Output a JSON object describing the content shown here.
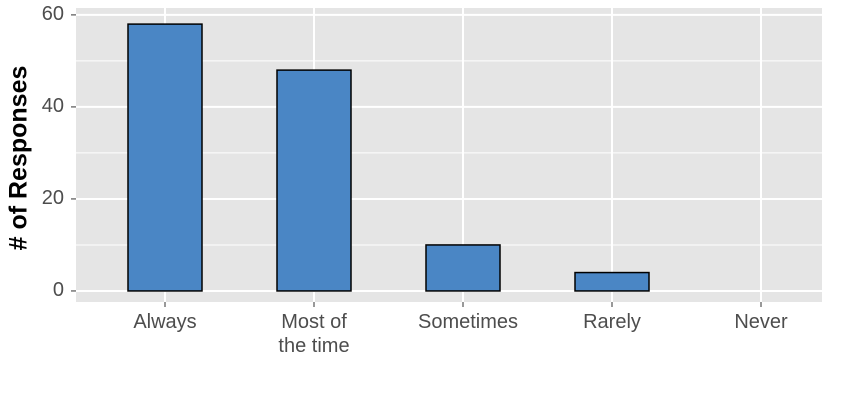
{
  "chart_data": {
    "type": "bar",
    "y_label": "# of Responses",
    "categories": [
      "Always",
      "Most of the time",
      "Sometimes",
      "Rarely",
      "Never"
    ],
    "values": [
      58,
      48,
      10,
      4,
      0
    ],
    "color": "#4a86c5",
    "ylim": [
      -2.4,
      61.5
    ],
    "yticks": [
      0,
      20,
      40,
      60
    ],
    "grid": true
  }
}
